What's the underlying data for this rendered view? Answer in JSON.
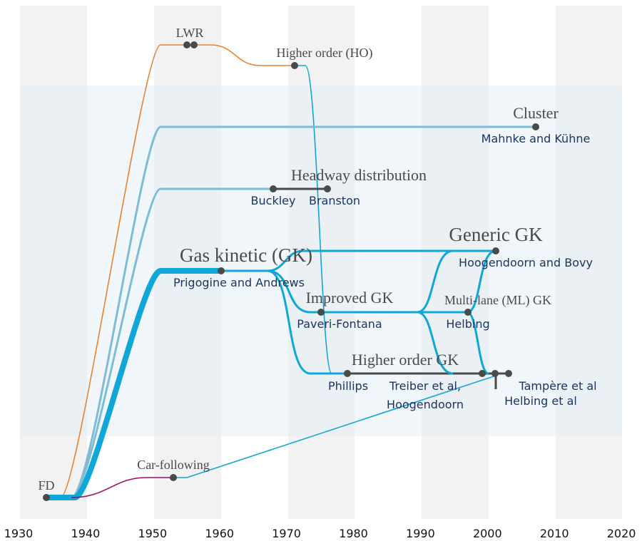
{
  "axis": {
    "ticks": [
      "1930",
      "1940",
      "1950",
      "1960",
      "1970",
      "1980",
      "1990",
      "2000",
      "2010",
      "2020"
    ]
  },
  "nodes": [
    {
      "label": "FD"
    },
    {
      "label": "LWR"
    },
    {
      "label": "Higher order (HO)"
    },
    {
      "label": "Cluster",
      "author": "Mahnke and Kühne"
    },
    {
      "label": "Headway distribution",
      "author": "Buckley",
      "author2": "Branston"
    },
    {
      "label": "Gas kinetic (GK)",
      "author": "Prigogine and Andrews"
    },
    {
      "label": "Generic GK",
      "author": "Hoogendoorn and Bovy"
    },
    {
      "label": "Improved GK",
      "author": "Paveri-Fontana"
    },
    {
      "label": "Multi-lane (ML) GK",
      "author": "Helbing"
    },
    {
      "label": "Higher order GK",
      "author": "Phillips",
      "author2": "Treiber et al,",
      "author3": "Hoogendoorn",
      "author4": "Tampère et al",
      "author5": "Helbing et al"
    },
    {
      "label": "Car-following"
    }
  ]
}
